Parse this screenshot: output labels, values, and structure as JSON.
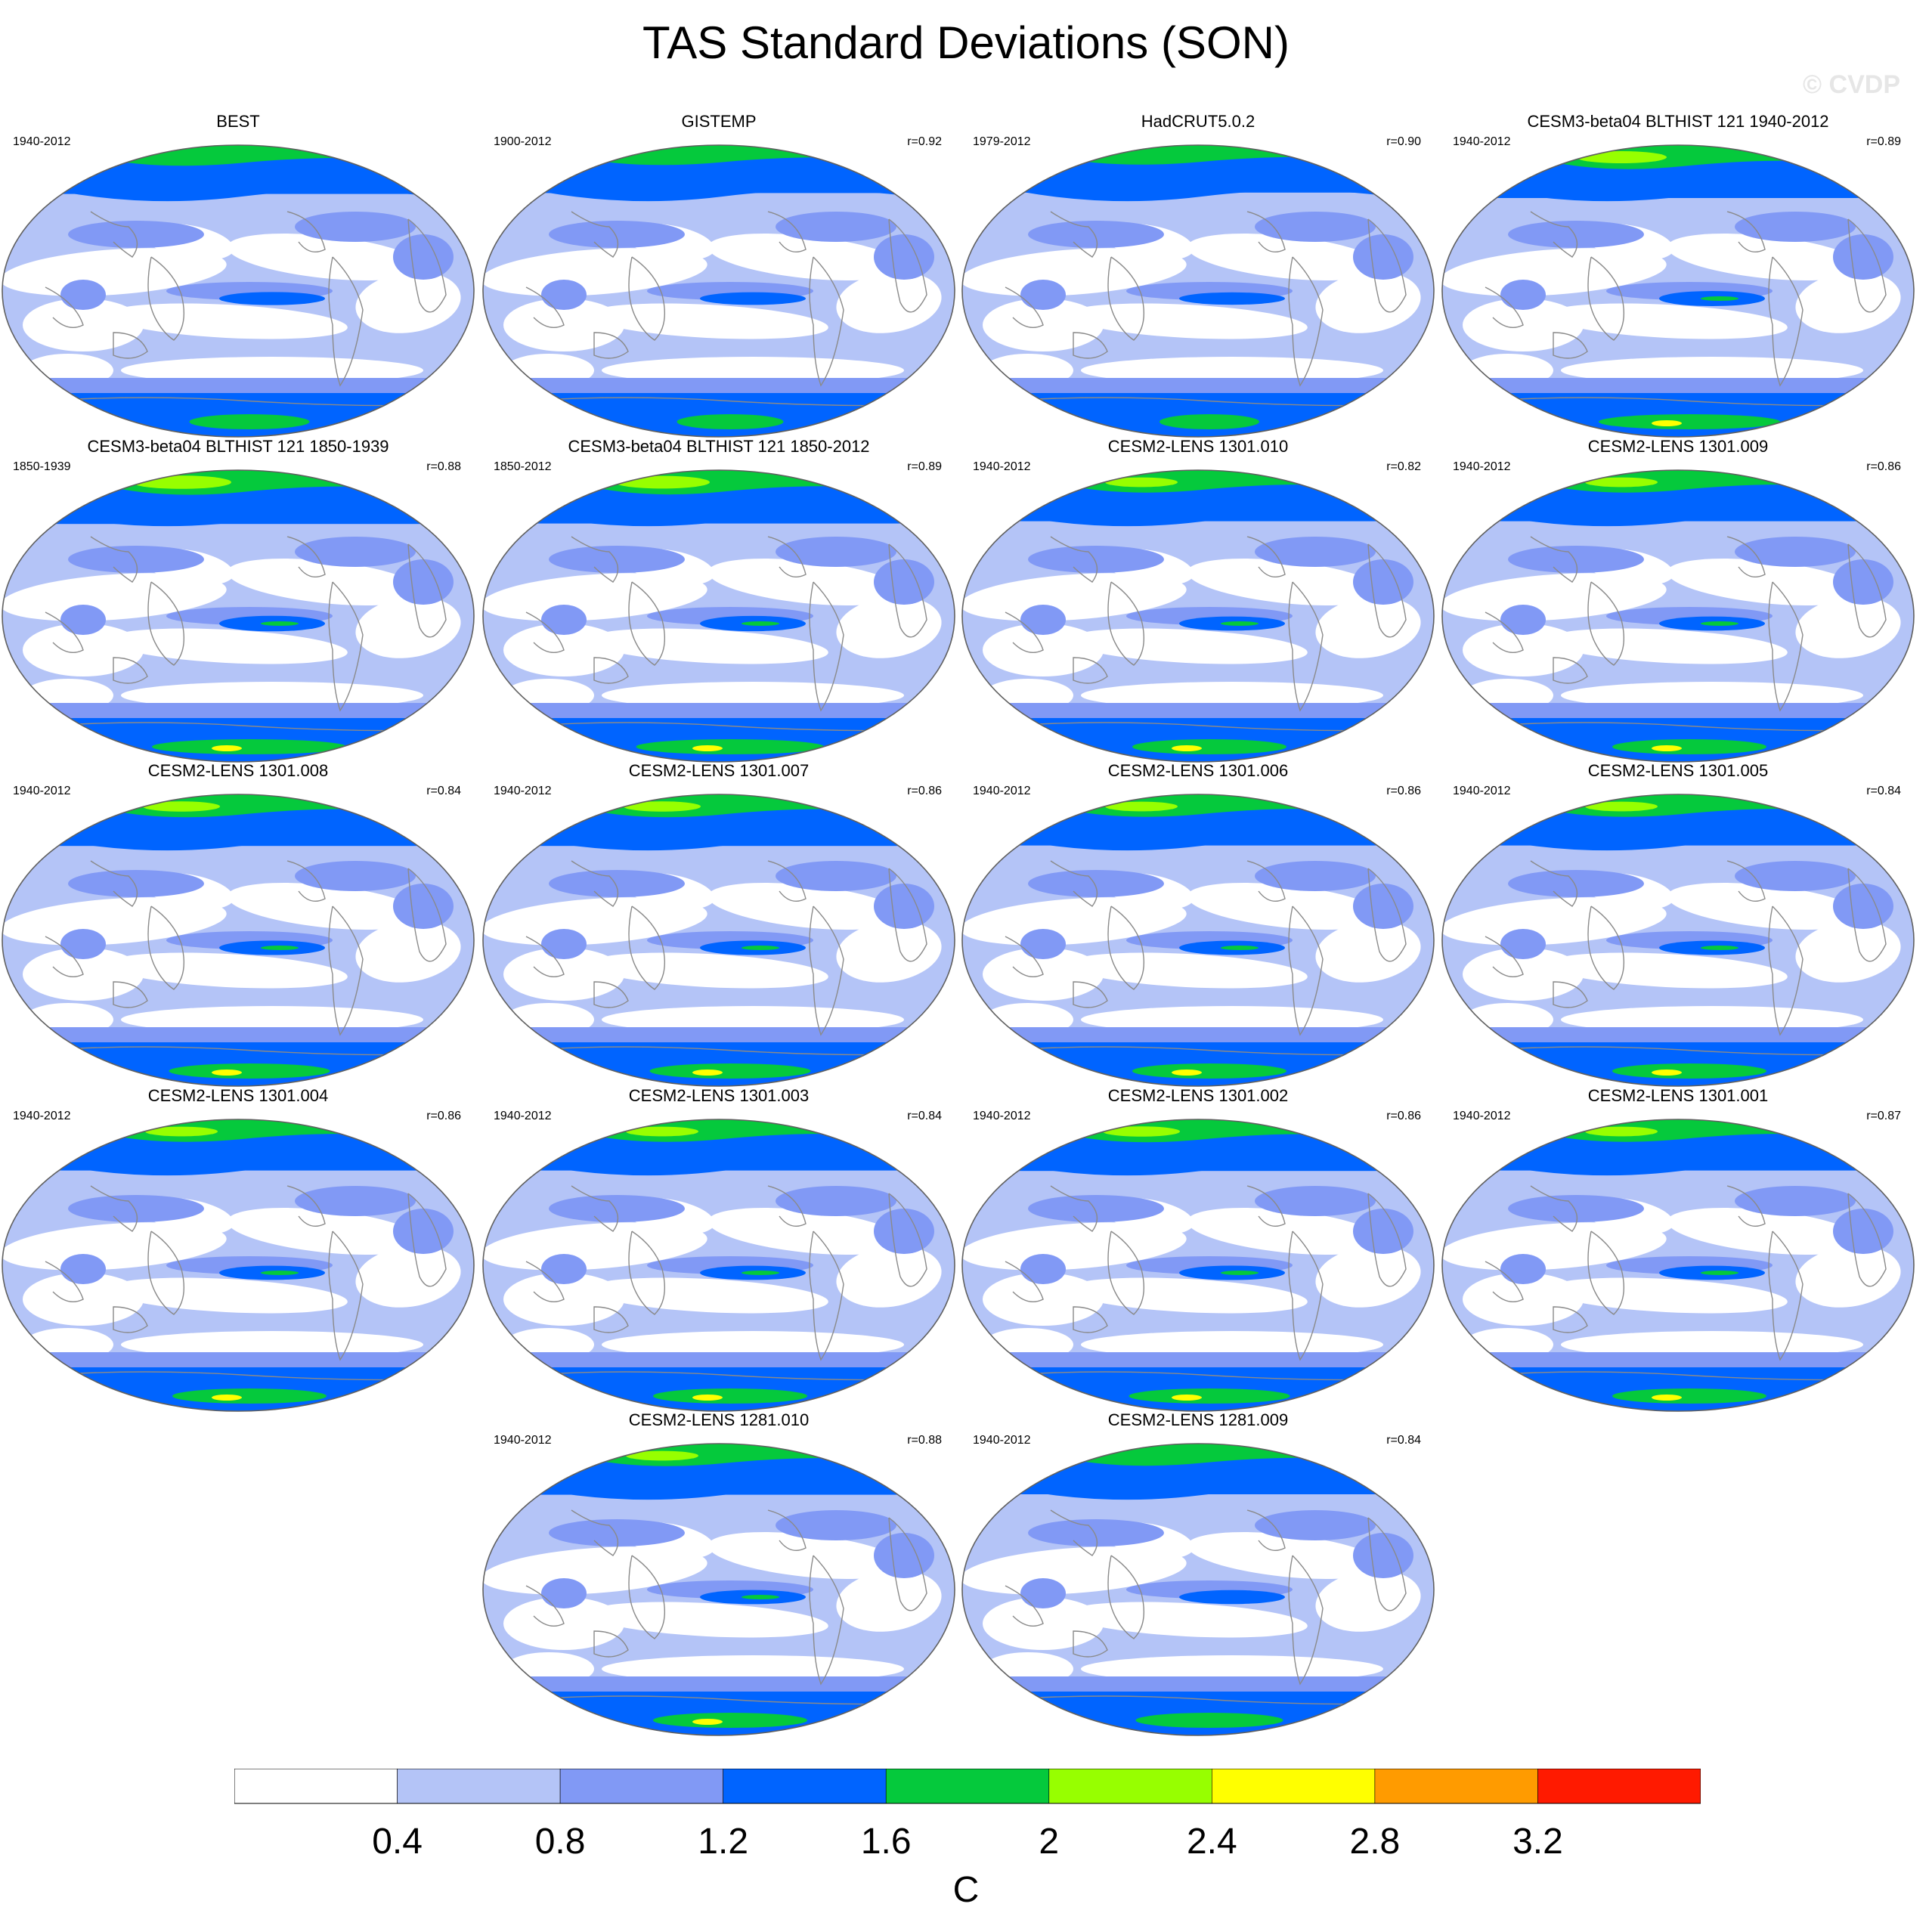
{
  "figure": {
    "title": "TAS Standard Deviations (SON)",
    "watermark": "© CVDP",
    "units": "C"
  },
  "colors": {
    "levels": [
      "#ffffff",
      "#b4c4f7",
      "#8199f5",
      "#0064ff",
      "#05c93c",
      "#97ff00",
      "#ffff00",
      "#ff9b00",
      "#ff1a00"
    ],
    "coast": "#8a8a8a",
    "outline": "#606060"
  },
  "chart_data": {
    "type": "heatmap",
    "title": "TAS Standard Deviations (SON)",
    "colorbar": {
      "label": "C",
      "boundaries": [
        0.4,
        0.8,
        1.2,
        1.6,
        2,
        2.4,
        2.8,
        3.2
      ],
      "tick_labels": [
        "0.4",
        "0.8",
        "1.2",
        "1.6",
        "2",
        "2.4",
        "2.8",
        "3.2"
      ],
      "bins": 9
    },
    "panels": [
      {
        "title": "BEST",
        "years": "1940-2012",
        "r": "",
        "intensity": 0.55
      },
      {
        "title": "GISTEMP",
        "years": "1900-2012",
        "r": "r=0.92",
        "intensity": 0.45
      },
      {
        "title": "HadCRUT5.0.2",
        "years": "1979-2012",
        "r": "r=0.90",
        "intensity": 0.4
      },
      {
        "title": "CESM3-beta04 BLTHIST 121 1940-2012",
        "years": "1940-2012",
        "r": "r=0.89",
        "intensity": 1.0
      },
      {
        "title": "CESM3-beta04 BLTHIST 121 1850-1939",
        "years": "1850-1939",
        "r": "r=0.88",
        "intensity": 1.1
      },
      {
        "title": "CESM3-beta04 BLTHIST 121 1850-2012",
        "years": "1850-2012",
        "r": "r=0.89",
        "intensity": 1.05
      },
      {
        "title": "CESM2-LENS 1301.010",
        "years": "1940-2012",
        "r": "r=0.82",
        "intensity": 0.8
      },
      {
        "title": "CESM2-LENS 1301.009",
        "years": "1940-2012",
        "r": "r=0.86",
        "intensity": 0.8
      },
      {
        "title": "CESM2-LENS 1301.008",
        "years": "1940-2012",
        "r": "r=0.84",
        "intensity": 0.85
      },
      {
        "title": "CESM2-LENS 1301.007",
        "years": "1940-2012",
        "r": "r=0.86",
        "intensity": 0.85
      },
      {
        "title": "CESM2-LENS 1301.006",
        "years": "1940-2012",
        "r": "r=0.86",
        "intensity": 0.8
      },
      {
        "title": "CESM2-LENS 1301.005",
        "years": "1940-2012",
        "r": "r=0.84",
        "intensity": 0.8
      },
      {
        "title": "CESM2-LENS 1301.004",
        "years": "1940-2012",
        "r": "r=0.86",
        "intensity": 0.8
      },
      {
        "title": "CESM2-LENS 1301.003",
        "years": "1940-2012",
        "r": "r=0.84",
        "intensity": 0.8
      },
      {
        "title": "CESM2-LENS 1301.002",
        "years": "1940-2012",
        "r": "r=0.86",
        "intensity": 0.85
      },
      {
        "title": "CESM2-LENS 1301.001",
        "years": "1940-2012",
        "r": "r=0.87",
        "intensity": 0.8
      },
      {
        "title": "CESM2-LENS 1281.010",
        "years": "1940-2012",
        "r": "r=0.88",
        "intensity": 0.8
      },
      {
        "title": "CESM2-LENS 1281.009",
        "years": "1940-2012",
        "r": "r=0.84",
        "intensity": 0.75
      }
    ]
  }
}
